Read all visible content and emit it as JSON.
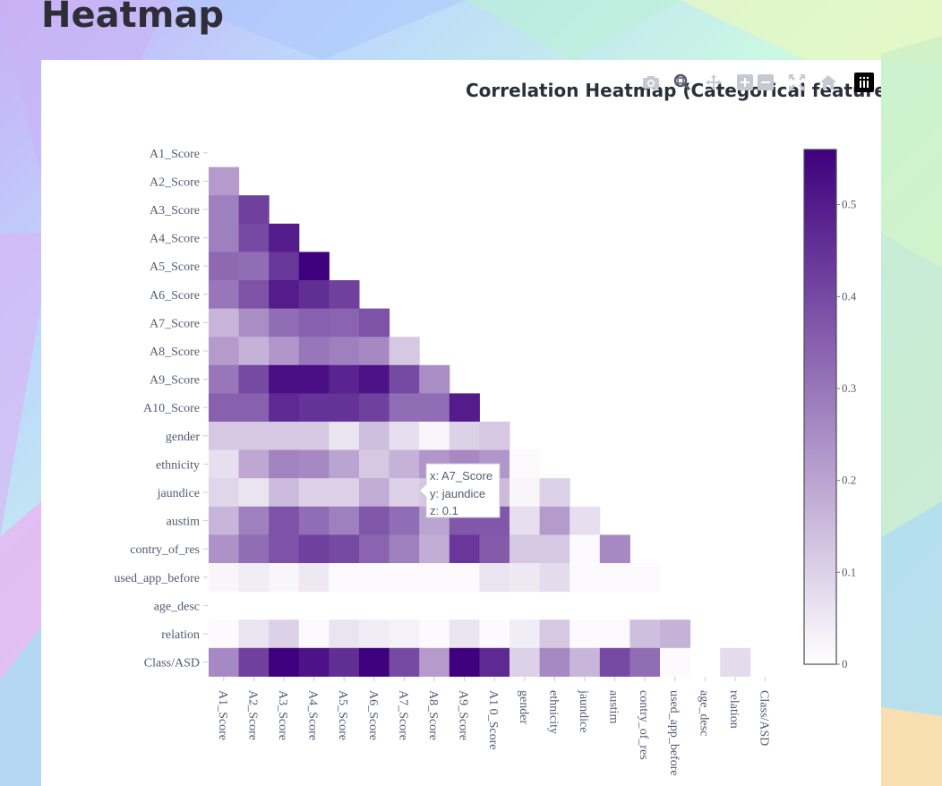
{
  "page": {
    "title": "Heatmap"
  },
  "modebar": {
    "icons": [
      "camera-icon",
      "zoom-icon",
      "pan-icon",
      "zoom-in-icon",
      "zoom-out-icon",
      "autoscale-icon",
      "home-icon",
      "plotly-logo-icon"
    ]
  },
  "tooltip": {
    "x_text": "x: A7_Score",
    "y_text": "y: jaundice",
    "z_text": "z: 0.1"
  },
  "chart_data": {
    "type": "heatmap",
    "title": "Correlation Heatmap (Categorical features",
    "x": [
      "A1_Score",
      "A2_Score",
      "A3_Score",
      "A4_Score",
      "A5_Score",
      "A6_Score",
      "A7_Score",
      "A8_Score",
      "A9_Score",
      "A10_Score",
      "gender",
      "ethnicity",
      "jaundice",
      "austim",
      "contry_of_res",
      "used_app_before",
      "age_desc",
      "relation",
      "Class/ASD"
    ],
    "x_tick_labels": [
      "A1_Score",
      "A2_Score",
      "A3_Score",
      "A4_Score",
      "A5_Score",
      "A6_Score",
      "A7_Score",
      "A8_Score",
      "A9_Score",
      "A1 0_Score",
      "gender",
      "ethnicity",
      "jaundice",
      "austim",
      "contry_of_res",
      "used_app_before",
      "age_desc",
      "relation",
      "Class/ASD"
    ],
    "y": [
      "A1_Score",
      "A2_Score",
      "A3_Score",
      "A4_Score",
      "A5_Score",
      "A6_Score",
      "A7_Score",
      "A8_Score",
      "A9_Score",
      "A10_Score",
      "gender",
      "ethnicity",
      "jaundice",
      "austim",
      "contry_of_res",
      "used_app_before",
      "age_desc",
      "relation",
      "Class/ASD"
    ],
    "colorscale": [
      "#ffffff",
      "#3f007d"
    ],
    "zmin": 0,
    "zmax": 0.56,
    "colorbar_ticks": [
      "0",
      "0.1",
      "0.2",
      "0.3",
      "0.4",
      "0.5"
    ],
    "z": [
      [],
      [
        0.22
      ],
      [
        0.28,
        0.42
      ],
      [
        0.28,
        0.4,
        0.5
      ],
      [
        0.33,
        0.32,
        0.44,
        0.56
      ],
      [
        0.3,
        0.38,
        0.5,
        0.46,
        0.42
      ],
      [
        0.16,
        0.25,
        0.32,
        0.35,
        0.34,
        0.38
      ],
      [
        0.22,
        0.17,
        0.23,
        0.3,
        0.28,
        0.26,
        0.12
      ],
      [
        0.3,
        0.4,
        0.53,
        0.53,
        0.48,
        0.52,
        0.4,
        0.25
      ],
      [
        0.35,
        0.35,
        0.47,
        0.45,
        0.45,
        0.42,
        0.32,
        0.32,
        0.5
      ],
      [
        0.12,
        0.12,
        0.12,
        0.12,
        0.06,
        0.14,
        0.07,
        0.02,
        0.1,
        0.12
      ],
      [
        0.07,
        0.19,
        0.27,
        0.26,
        0.2,
        0.12,
        0.17,
        0.23,
        0.26,
        0.23,
        0.01
      ],
      [
        0.09,
        0.06,
        0.15,
        0.1,
        0.1,
        0.18,
        0.1,
        0.12,
        0.15,
        0.15,
        0.02,
        0.1
      ],
      [
        0.16,
        0.28,
        0.38,
        0.32,
        0.28,
        0.37,
        0.32,
        0.2,
        0.37,
        0.37,
        0.07,
        0.22,
        0.07
      ],
      [
        0.24,
        0.32,
        0.38,
        0.42,
        0.4,
        0.34,
        0.28,
        0.18,
        0.44,
        0.36,
        0.12,
        0.12,
        0.01,
        0.26
      ],
      [
        0.02,
        0.04,
        0.02,
        0.05,
        0.01,
        0.01,
        0.01,
        0.01,
        0.01,
        0.06,
        0.05,
        0.08,
        0.01,
        0.01,
        0.01
      ],
      [],
      [
        0.01,
        0.06,
        0.1,
        0.01,
        0.06,
        0.04,
        0.03,
        0.01,
        0.06,
        0.01,
        0.04,
        0.12,
        0.01,
        0.01,
        0.14,
        0.17
      ],
      [
        0.26,
        0.42,
        0.56,
        0.52,
        0.46,
        0.56,
        0.4,
        0.22,
        0.56,
        0.47,
        0.1,
        0.26,
        0.16,
        0.4,
        0.32,
        0.01,
        null,
        0.08
      ]
    ]
  }
}
